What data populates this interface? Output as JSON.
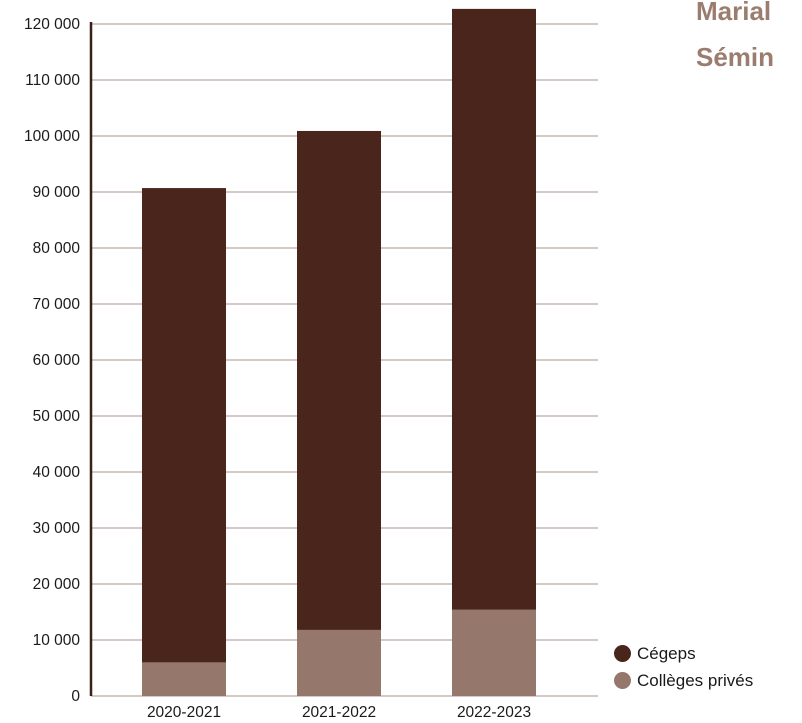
{
  "side_titles": [
    "Marial",
    "Sémin"
  ],
  "colors": {
    "cegeps": "#4a251b",
    "colleges_prives": "#95776b",
    "grid": "#d4c9c5",
    "axis": "#3c1f17"
  },
  "chart_data": {
    "type": "bar",
    "stacked": true,
    "categories": [
      "2020-2021",
      "2021-2022",
      "2022-2023"
    ],
    "series": [
      {
        "name": "Collèges privés",
        "values": [
          6000,
          11800,
          15400
        ]
      },
      {
        "name": "Cégeps",
        "values": [
          84700,
          89100,
          107300
        ]
      }
    ],
    "ylim": [
      0,
      120000
    ],
    "yticks": [
      0,
      10000,
      20000,
      30000,
      40000,
      50000,
      60000,
      70000,
      80000,
      90000,
      100000,
      110000,
      120000
    ],
    "ytick_labels": [
      "0",
      "10 000",
      "20 000",
      "30 000",
      "40 000",
      "50 000",
      "60 000",
      "70 000",
      "80 000",
      "90 000",
      "100 000",
      "110 000",
      "120 000"
    ],
    "grid": true,
    "legend_position": "bottom-right",
    "legend": [
      "Cégeps",
      "Collèges privés"
    ]
  }
}
